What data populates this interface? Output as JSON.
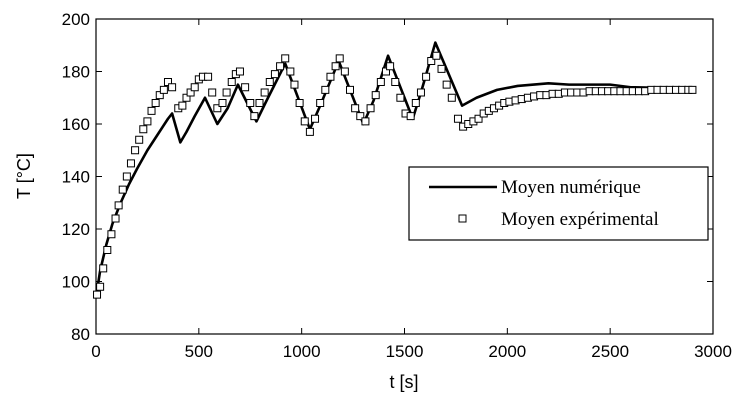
{
  "chart_data": {
    "type": "line",
    "xlabel": "t [s]",
    "ylabel": "T [°C]",
    "xlim": [
      0,
      3000
    ],
    "ylim": [
      80,
      200
    ],
    "x_ticks": [
      0,
      500,
      1000,
      1500,
      2000,
      2500,
      3000
    ],
    "y_ticks": [
      80,
      100,
      120,
      140,
      160,
      180,
      200
    ],
    "grid": false,
    "legend_position": "center-right",
    "series": [
      {
        "name": "Moyen numérique",
        "style": "solid-line",
        "color": "#000000",
        "points": [
          [
            0,
            94
          ],
          [
            20,
            104
          ],
          [
            50,
            114
          ],
          [
            80,
            122
          ],
          [
            120,
            130
          ],
          [
            160,
            137
          ],
          [
            200,
            143
          ],
          [
            250,
            150
          ],
          [
            300,
            156
          ],
          [
            350,
            162
          ],
          [
            370,
            164
          ],
          [
            410,
            153
          ],
          [
            440,
            157
          ],
          [
            480,
            163
          ],
          [
            530,
            170
          ],
          [
            590,
            160
          ],
          [
            640,
            166
          ],
          [
            690,
            175
          ],
          [
            780,
            161
          ],
          [
            830,
            169
          ],
          [
            920,
            183
          ],
          [
            1040,
            158
          ],
          [
            1090,
            167
          ],
          [
            1180,
            184
          ],
          [
            1300,
            160
          ],
          [
            1350,
            169
          ],
          [
            1420,
            186
          ],
          [
            1540,
            162
          ],
          [
            1580,
            172
          ],
          [
            1650,
            191
          ],
          [
            1780,
            167
          ],
          [
            1850,
            170
          ],
          [
            1950,
            173
          ],
          [
            2050,
            174.5
          ],
          [
            2200,
            175.5
          ],
          [
            2300,
            175
          ],
          [
            2500,
            175
          ],
          [
            2600,
            174
          ],
          [
            2900,
            173.5
          ]
        ]
      },
      {
        "name": "Moyen expérimental",
        "style": "open-square-markers",
        "color": "#000000",
        "points": [
          [
            5,
            95
          ],
          [
            20,
            98
          ],
          [
            35,
            105
          ],
          [
            55,
            112
          ],
          [
            75,
            118
          ],
          [
            95,
            124
          ],
          [
            110,
            129
          ],
          [
            130,
            135
          ],
          [
            150,
            140
          ],
          [
            170,
            145
          ],
          [
            190,
            150
          ],
          [
            210,
            154
          ],
          [
            230,
            158
          ],
          [
            250,
            161
          ],
          [
            270,
            165
          ],
          [
            290,
            168
          ],
          [
            310,
            171
          ],
          [
            330,
            173
          ],
          [
            350,
            176
          ],
          [
            370,
            174
          ],
          [
            400,
            166
          ],
          [
            420,
            167
          ],
          [
            440,
            170
          ],
          [
            460,
            172
          ],
          [
            480,
            174
          ],
          [
            500,
            177
          ],
          [
            520,
            178
          ],
          [
            545,
            178
          ],
          [
            565,
            172
          ],
          [
            590,
            166
          ],
          [
            615,
            168
          ],
          [
            635,
            172
          ],
          [
            660,
            176
          ],
          [
            680,
            179
          ],
          [
            700,
            180
          ],
          [
            725,
            174
          ],
          [
            750,
            168
          ],
          [
            770,
            163
          ],
          [
            795,
            168
          ],
          [
            820,
            172
          ],
          [
            845,
            176
          ],
          [
            870,
            179
          ],
          [
            895,
            182
          ],
          [
            920,
            185
          ],
          [
            945,
            180
          ],
          [
            965,
            175
          ],
          [
            990,
            168
          ],
          [
            1015,
            161
          ],
          [
            1040,
            157
          ],
          [
            1065,
            162
          ],
          [
            1090,
            168
          ],
          [
            1115,
            173
          ],
          [
            1140,
            178
          ],
          [
            1165,
            182
          ],
          [
            1185,
            185
          ],
          [
            1210,
            180
          ],
          [
            1235,
            173
          ],
          [
            1260,
            166
          ],
          [
            1285,
            163
          ],
          [
            1310,
            161
          ],
          [
            1335,
            166
          ],
          [
            1360,
            171
          ],
          [
            1385,
            176
          ],
          [
            1410,
            180
          ],
          [
            1430,
            182
          ],
          [
            1455,
            176
          ],
          [
            1480,
            170
          ],
          [
            1505,
            164
          ],
          [
            1530,
            163
          ],
          [
            1555,
            168
          ],
          [
            1580,
            172
          ],
          [
            1605,
            178
          ],
          [
            1630,
            184
          ],
          [
            1655,
            186
          ],
          [
            1680,
            181
          ],
          [
            1705,
            175
          ],
          [
            1730,
            170
          ],
          [
            1760,
            162
          ],
          [
            1785,
            159
          ],
          [
            1810,
            160
          ],
          [
            1835,
            161
          ],
          [
            1860,
            162
          ],
          [
            1885,
            164
          ],
          [
            1910,
            165
          ],
          [
            1935,
            166
          ],
          [
            1960,
            167
          ],
          [
            1985,
            168
          ],
          [
            2010,
            168.5
          ],
          [
            2040,
            169
          ],
          [
            2070,
            169.5
          ],
          [
            2100,
            170
          ],
          [
            2130,
            170.5
          ],
          [
            2160,
            171
          ],
          [
            2190,
            171
          ],
          [
            2220,
            171.5
          ],
          [
            2250,
            171.5
          ],
          [
            2280,
            172
          ],
          [
            2310,
            172
          ],
          [
            2340,
            172
          ],
          [
            2370,
            172
          ],
          [
            2400,
            172.5
          ],
          [
            2430,
            172.5
          ],
          [
            2460,
            172.5
          ],
          [
            2490,
            172.5
          ],
          [
            2520,
            172.5
          ],
          [
            2550,
            172.5
          ],
          [
            2580,
            172.5
          ],
          [
            2610,
            172.5
          ],
          [
            2640,
            172.5
          ],
          [
            2670,
            172.5
          ],
          [
            2700,
            173
          ],
          [
            2730,
            173
          ],
          [
            2760,
            173
          ],
          [
            2790,
            173
          ],
          [
            2820,
            173
          ],
          [
            2850,
            173
          ],
          [
            2880,
            173
          ],
          [
            2900,
            173
          ]
        ]
      }
    ]
  }
}
